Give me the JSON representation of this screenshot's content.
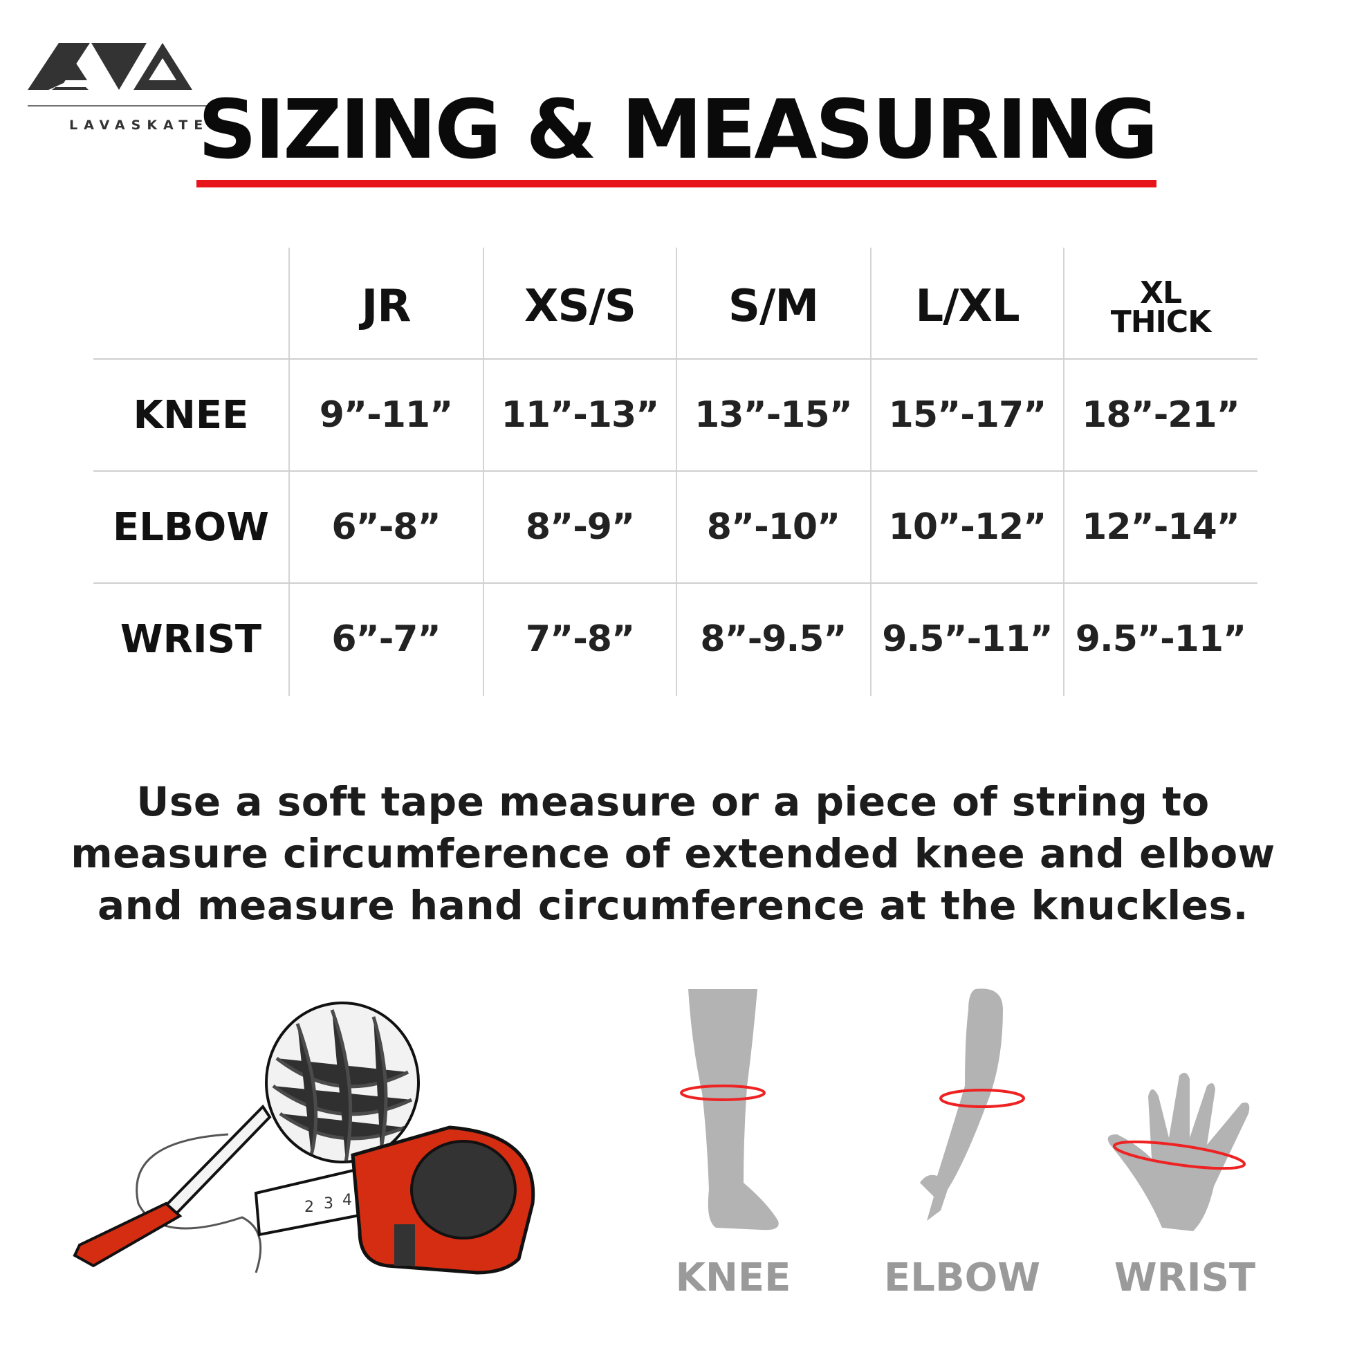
{
  "brand": {
    "logo_mark": "LAVA",
    "logo_text": "LAVASKATES"
  },
  "title": "SIZING & MEASURING",
  "colors": {
    "accent_red": "#e8141b",
    "figure_gray": "#b3b3b3",
    "label_gray": "#9a9a9a"
  },
  "table": {
    "columns": [
      "JR",
      "XS/S",
      "S/M",
      "L/XL",
      "XL THICK"
    ],
    "column_last_lines": [
      "XL",
      "THICK"
    ],
    "rows": [
      {
        "label": "KNEE",
        "values": [
          "9”-11”",
          "11”-13”",
          "13”-15”",
          "15”-17”",
          "18”-21”"
        ]
      },
      {
        "label": "ELBOW",
        "values": [
          "6”-8”",
          "8”-9”",
          "8”-10”",
          "10”-12”",
          "12”-14”"
        ]
      },
      {
        "label": "WRIST",
        "values": [
          "6”-7”",
          "7”-8”",
          "8”-9.5”",
          "9.5”-11”",
          "9.5”-11”"
        ]
      }
    ]
  },
  "instructions": {
    "lines": [
      "Use a soft tape measure or a piece of string to",
      "measure circumference of extended knee and elbow",
      "and measure hand circumference at the knuckles."
    ]
  },
  "illustrations": {
    "tools": [
      "ball-of-string",
      "marker-pen",
      "tape-measure"
    ],
    "tape_numbers": [
      "2",
      "3",
      "4"
    ],
    "figures": [
      {
        "icon": "leg-icon",
        "label": "KNEE"
      },
      {
        "icon": "arm-icon",
        "label": "ELBOW"
      },
      {
        "icon": "hand-icon",
        "label": "WRIST"
      }
    ]
  }
}
